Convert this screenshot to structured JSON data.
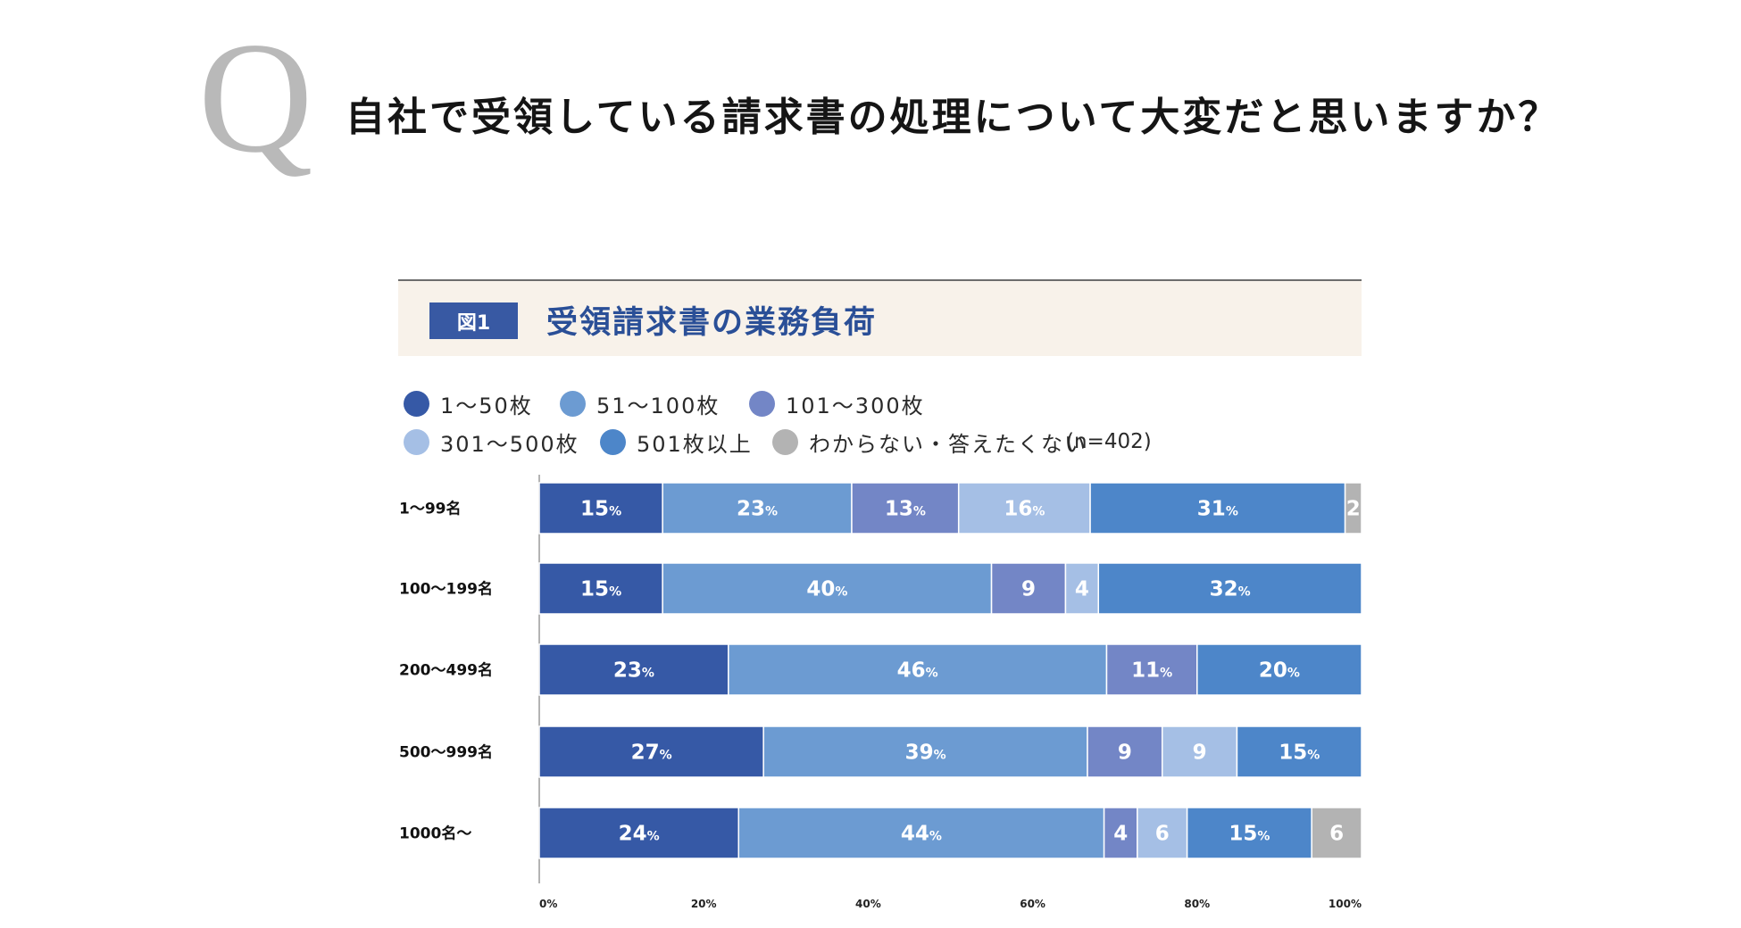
{
  "question": {
    "mark": "Q",
    "text": "自社で受領している請求書の処理について大変だと思いますか？"
  },
  "figure": {
    "badge": "図1",
    "title": "受領請求書の業務負荷"
  },
  "sample_size": "(n=402)",
  "chart_data": {
    "type": "bar",
    "orientation": "horizontal",
    "stacked": true,
    "title": "受領請求書の業務負荷",
    "categories": [
      "1〜99名",
      "100〜199名",
      "200〜499名",
      "500〜999名",
      "1000名〜"
    ],
    "series": [
      {
        "name": "1〜50枚",
        "color": "#3659a6",
        "values": [
          15,
          15,
          23,
          27,
          24
        ]
      },
      {
        "name": "51〜100枚",
        "color": "#6c9bd2",
        "values": [
          23,
          40,
          46,
          39,
          44
        ]
      },
      {
        "name": "101〜300枚",
        "color": "#7386c6",
        "values": [
          13,
          9,
          11,
          9,
          4
        ]
      },
      {
        "name": "301〜500枚",
        "color": "#a5bfe5",
        "values": [
          16,
          4,
          0,
          9,
          6
        ]
      },
      {
        "name": "501枚以上",
        "color": "#4d86c9",
        "values": [
          31,
          32,
          20,
          15,
          15
        ]
      },
      {
        "name": "わからない・答えたくない",
        "color": "#b3b3b3",
        "values": [
          2,
          0,
          0,
          0,
          6
        ]
      }
    ],
    "labels": [
      [
        "15%",
        "23%",
        "13%",
        "16%",
        "31%",
        "2"
      ],
      [
        "15%",
        "40%",
        "9",
        "4",
        "32%",
        ""
      ],
      [
        "23%",
        "46%",
        "11%",
        "",
        "20%",
        ""
      ],
      [
        "27%",
        "39%",
        "9",
        "9",
        "15%",
        ""
      ],
      [
        "24%",
        "44%",
        "4",
        "6",
        "15%",
        "6"
      ]
    ],
    "xlim": [
      0,
      100
    ],
    "x_ticks": [
      "0%",
      "20%",
      "40%",
      "60%",
      "80%",
      "100%"
    ],
    "legend": "top-left"
  }
}
